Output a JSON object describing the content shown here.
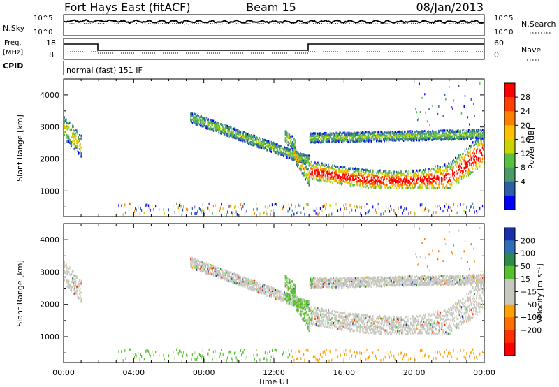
{
  "header": {
    "station": "Fort Hays East (fitACF)",
    "beam": "Beam 15",
    "date": "08/Jan/2013"
  },
  "panels": {
    "nsky": {
      "label": "N.Sky",
      "right_label": "N.Search",
      "ticks_left": [
        "10^5",
        "10^0"
      ],
      "ticks_right": [
        "10^5",
        "10^0"
      ]
    },
    "freq": {
      "label_line1": "Freq.",
      "label_line2": "[MHz]",
      "ticks_left": [
        "18",
        "8"
      ],
      "right_label": "Nave",
      "ticks_right": [
        "60",
        "0"
      ]
    },
    "cpid": {
      "label": "CPID",
      "value": "normal (fast) 151 IF"
    }
  },
  "chart_data": [
    {
      "type": "heatmap",
      "name": "power",
      "ylabel": "Slant Range [km]",
      "yticks": [
        1000,
        2000,
        3000,
        4000
      ],
      "ylim": [
        200,
        4500
      ],
      "xlim_hours": [
        0,
        24
      ],
      "colorbar": {
        "label": "Power [dB]",
        "ticks": [
          "28",
          "24",
          "20",
          "16",
          "12",
          "8",
          "4"
        ],
        "colors": [
          "#ff0000",
          "#ff4000",
          "#ff8000",
          "#ffc000",
          "#c8d400",
          "#58c040",
          "#4a9a6a",
          "#2a5fa8",
          "#0000ff"
        ]
      }
    },
    {
      "type": "heatmap",
      "name": "velocity",
      "ylabel": "Slant Range [km]",
      "yticks": [
        1000,
        2000,
        3000,
        4000
      ],
      "ylim": [
        200,
        4500
      ],
      "xlim_hours": [
        0,
        24
      ],
      "colorbar": {
        "label": "Velocity [m s⁻¹]",
        "ticks": [
          "200",
          "100",
          "50",
          "15",
          "−15",
          "−50",
          "−100",
          "−200"
        ],
        "colors": [
          "#1a2fa8",
          "#2f6fb8",
          "#2e8a4a",
          "#58c030",
          "#c8c8c0",
          "#c8c8c0",
          "#ffa000",
          "#ff7000",
          "#ff3000",
          "#ff0000"
        ]
      }
    }
  ],
  "xaxis": {
    "label": "Time UT",
    "ticks": [
      "00:00",
      "04:00",
      "08:00",
      "12:00",
      "16:00",
      "20:00",
      "00:00"
    ]
  }
}
